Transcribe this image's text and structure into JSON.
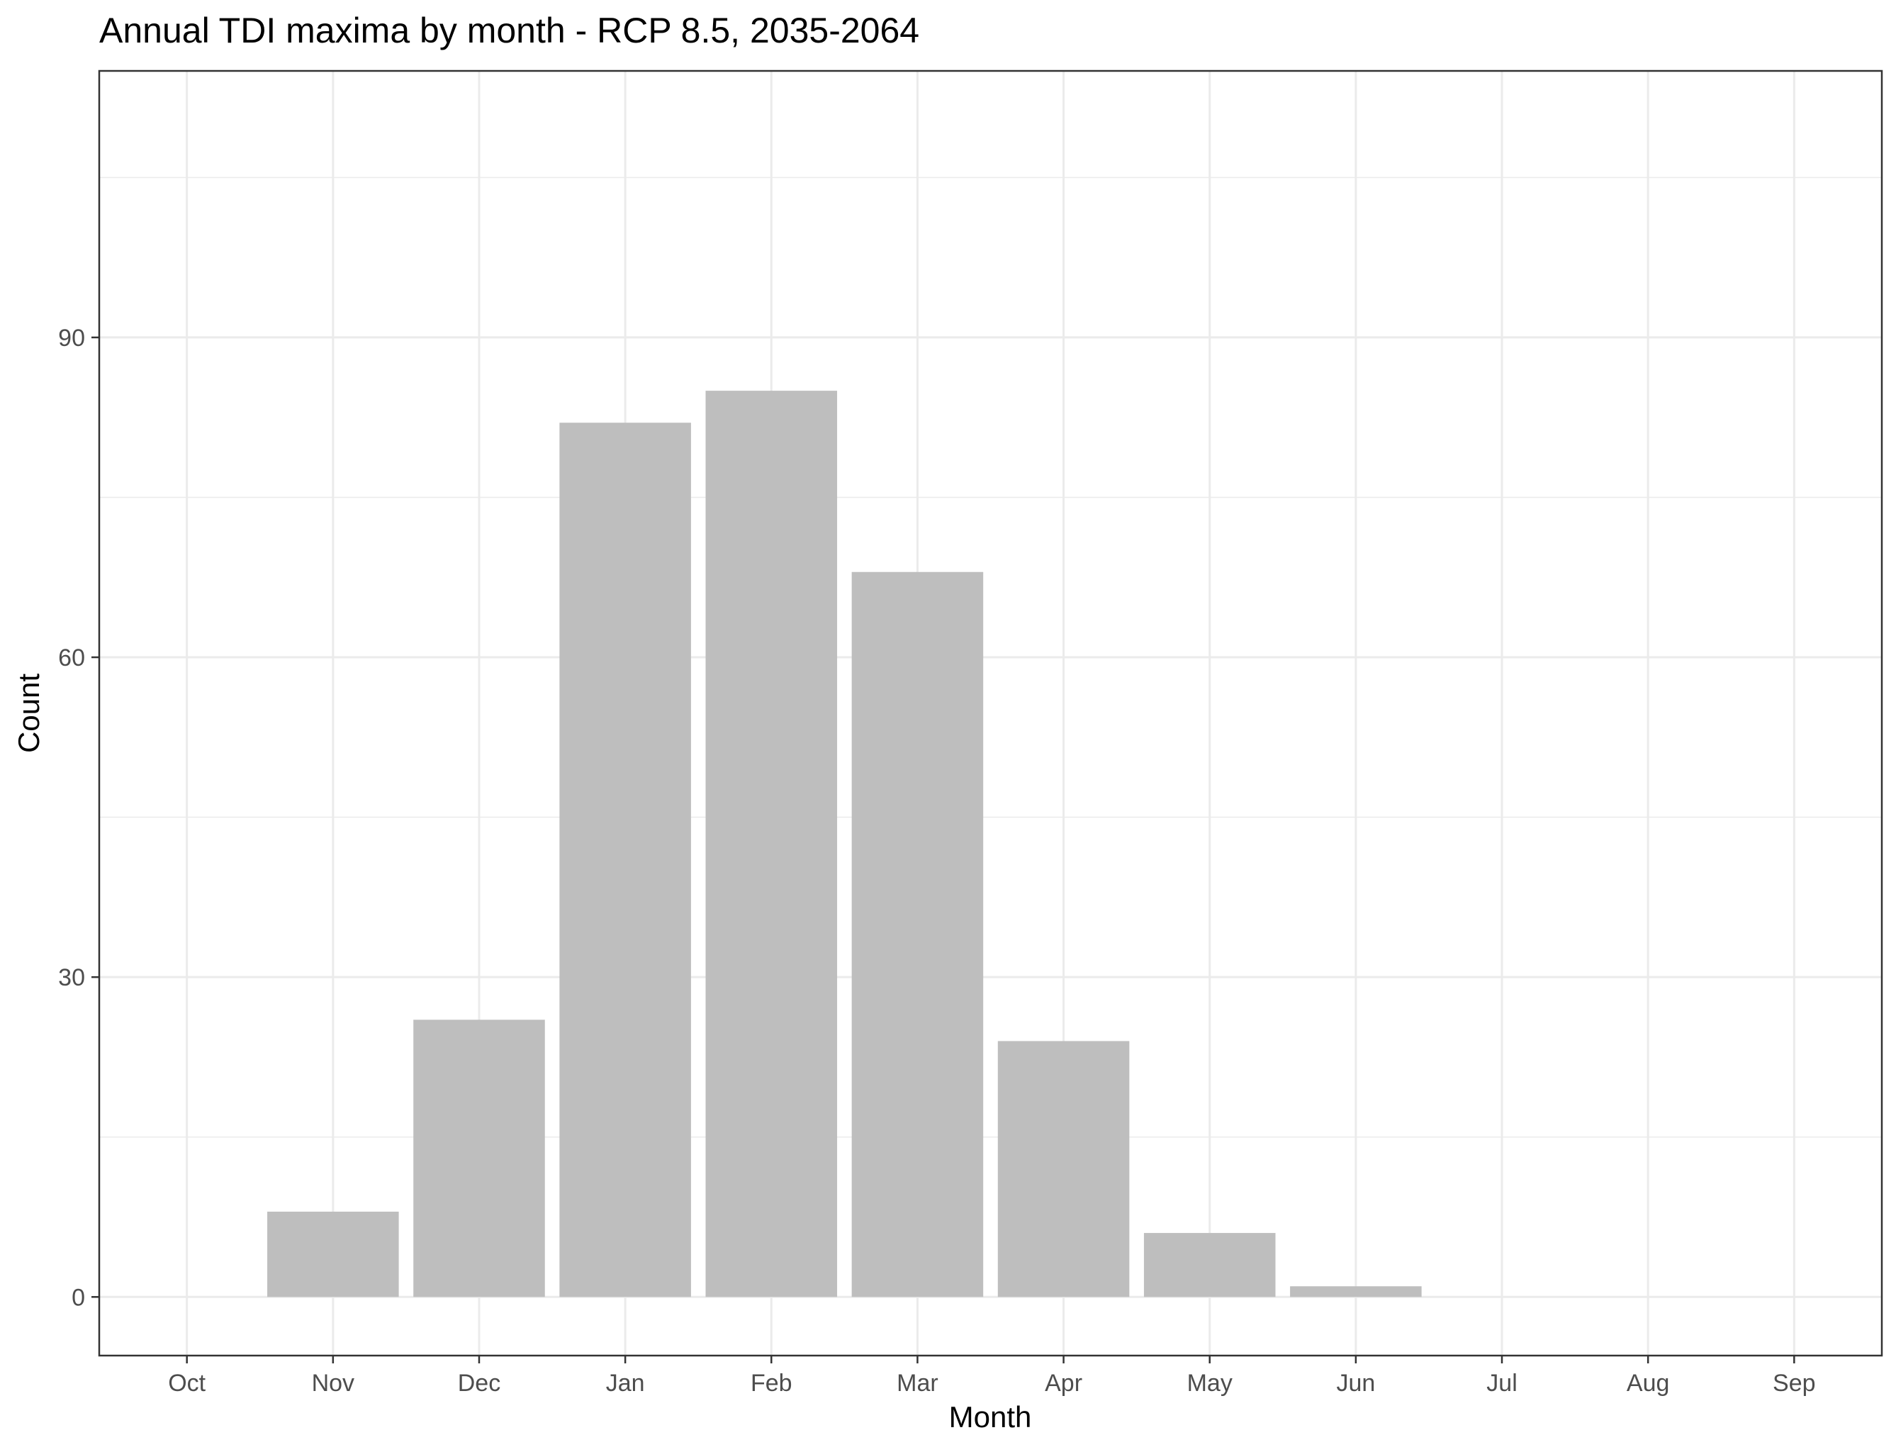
{
  "chart_data": {
    "type": "bar",
    "title": "Annual TDI maxima by month - RCP 8.5, 2035-2064",
    "xlabel": "Month",
    "ylabel": "Count",
    "categories": [
      "Oct",
      "Nov",
      "Dec",
      "Jan",
      "Feb",
      "Mar",
      "Apr",
      "May",
      "Jun",
      "Jul",
      "Aug",
      "Sep"
    ],
    "values": [
      0,
      8,
      26,
      82,
      85,
      68,
      24,
      6,
      1,
      0,
      0,
      0
    ],
    "ylim": [
      -5.5,
      115
    ],
    "yticks": [
      0,
      30,
      60,
      90
    ],
    "yticks_minor": [
      15,
      45,
      75,
      105
    ],
    "grid": true,
    "legend": "none",
    "colors": {
      "bar": "#bebebe",
      "grid": "#ebebeb",
      "panel_border": "#333333",
      "tick_text": "#4d4d4d",
      "title_text": "#000000"
    }
  }
}
